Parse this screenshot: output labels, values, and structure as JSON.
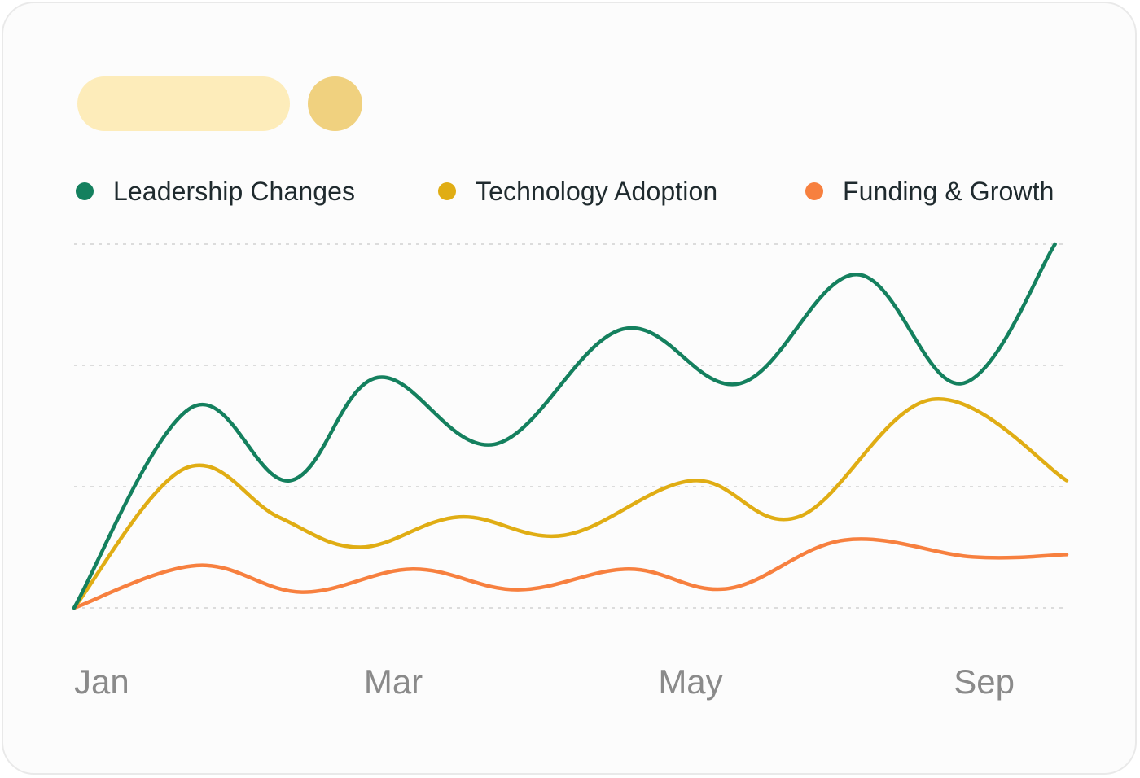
{
  "colors": {
    "card_bg": "#fcfcfc",
    "pill": "#fdecba",
    "dot": "#f0d17f",
    "grid": "#dcdcdc",
    "tick_text": "#8a8a8a"
  },
  "chart_data": {
    "type": "line",
    "title": "",
    "xlabel": "",
    "ylabel": "",
    "x": [
      0,
      0.5,
      1,
      1.5,
      2,
      2.5,
      3,
      3.5,
      4,
      4.5,
      5,
      5.5,
      6,
      6.5,
      7,
      7.5,
      8,
      8.5
    ],
    "x_ticks": [
      {
        "value": 0,
        "label": "Jan"
      },
      {
        "value": 2,
        "label": "Mar"
      },
      {
        "value": 4,
        "label": "May"
      },
      {
        "value": 8,
        "label": "Sep"
      }
    ],
    "xlim": [
      0,
      8.5
    ],
    "ylim": [
      0,
      3
    ],
    "y_gridlines": [
      0,
      1,
      2,
      3
    ],
    "show_y_tick_labels": false,
    "grid": true,
    "legend_position": "top",
    "series": [
      {
        "name": "Leadership Changes",
        "color": "#14805e",
        "values": [
          0,
          1.65,
          1.05,
          1.9,
          1.35,
          2.3,
          1.85,
          2.75,
          1.85,
          3.0
        ],
        "x": [
          0,
          1,
          1.85,
          2.6,
          3.6,
          4.7,
          5.7,
          6.7,
          7.6,
          8.4
        ]
      },
      {
        "name": "Technology Adoption",
        "color": "#e0ad14",
        "values": [
          0,
          1.15,
          0.75,
          0.5,
          0.75,
          0.6,
          1.05,
          0.75,
          1.72,
          1.05
        ],
        "x": [
          0,
          0.95,
          1.75,
          2.45,
          3.3,
          4.2,
          5.3,
          6.2,
          7.35,
          8.5
        ]
      },
      {
        "name": "Funding & Growth",
        "color": "#f7803f",
        "values": [
          0,
          0.35,
          0.13,
          0.32,
          0.15,
          0.32,
          0.16,
          0.56,
          0.42,
          0.44
        ],
        "x": [
          0,
          1.05,
          1.95,
          2.9,
          3.8,
          4.75,
          5.6,
          6.6,
          7.7,
          8.5
        ]
      }
    ]
  }
}
